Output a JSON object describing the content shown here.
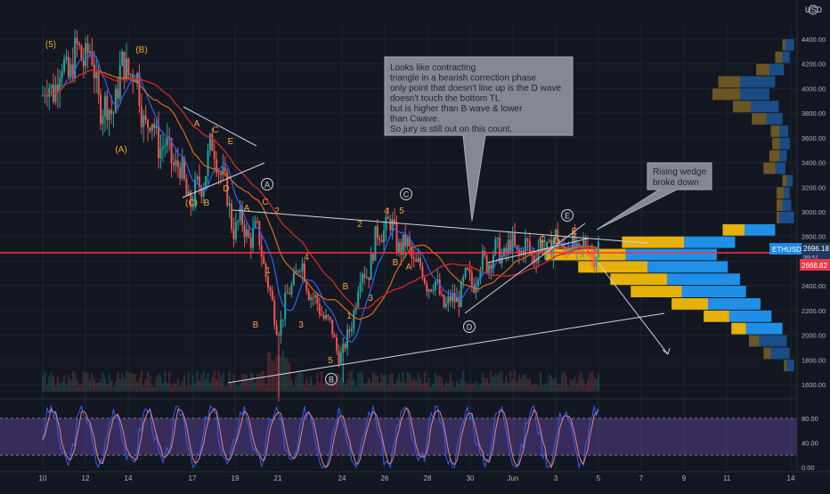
{
  "header": {
    "currency": "USD"
  },
  "price_badges": {
    "symbol": "ETHUSD",
    "last": "2696.18",
    "countdown": "39:51",
    "level": "2668.82"
  },
  "colors": {
    "bg": "#131722",
    "grid": "#1f2430",
    "text": "#b2b5be",
    "up": "#26a69a",
    "down": "#ef5350",
    "ma_blue": "#2962ff",
    "ma_orange": "#e0691a",
    "ma_red": "#c62828",
    "wave": "#f7a531",
    "line": "#d1d4dc",
    "hline": "#f23645",
    "vp_blue_in": "#2196f3",
    "vp_blue_out": "#1b4f8c",
    "vp_yel_in": "#f0b90b",
    "vp_yel_out": "#6f5a26",
    "stoch_k": "#2962ff",
    "stoch_d": "#f08080",
    "stoch_band": "#7e57c2"
  },
  "chart_data": [
    {
      "type": "line",
      "title": "ETHUSD",
      "ylim": [
        1500,
        4500
      ],
      "y_ticks": [
        "4400.00",
        "4200.00",
        "4000.00",
        "3800.00",
        "3600.00",
        "3400.00",
        "3200.00",
        "3000.00",
        "2800.00",
        "2600.00",
        "2400.00",
        "2200.00",
        "2000.00",
        "1800.00",
        "1600.00"
      ],
      "y_tick_values": [
        4400,
        4200,
        4000,
        3800,
        3600,
        3400,
        3200,
        3000,
        2800,
        2600,
        2400,
        2200,
        2000,
        1800,
        1600
      ],
      "x_ticks": [
        "10",
        "12",
        "14",
        "17",
        "19",
        "21",
        "24",
        "26",
        "28",
        "30",
        "Jun",
        "3",
        "5",
        "7",
        "9",
        "11",
        "14"
      ],
      "x_tick_index": [
        0,
        2,
        4,
        7,
        9,
        11,
        14,
        16,
        18,
        20,
        22,
        24,
        26,
        28,
        30,
        32,
        35
      ],
      "series": [
        {
          "x": [
            0,
            1,
            2,
            3,
            4,
            5,
            6,
            7,
            8,
            9,
            10,
            11,
            12,
            13,
            14,
            15,
            16,
            17,
            18,
            19,
            20,
            21,
            22,
            23,
            24,
            25,
            26
          ],
          "values": [
            3950,
            4150,
            4300,
            3800,
            4200,
            3700,
            3450,
            3100,
            3500,
            2900,
            2800,
            2100,
            2550,
            2200,
            1850,
            2500,
            2900,
            2700,
            2450,
            2250,
            2450,
            2650,
            2700,
            2680,
            2750,
            2700,
            2696
          ]
        }
      ],
      "annotations": {
        "waves": [
          "(5)",
          "(B)",
          "(A)",
          "A",
          "C",
          "E",
          "(C)",
          "B",
          "D",
          "A",
          "C",
          "2",
          "1",
          "B",
          "4",
          "3",
          "5",
          "B",
          "1",
          "2",
          "3",
          "4",
          "5",
          "B",
          "A",
          "C",
          "D",
          "E"
        ],
        "circled": [
          "A",
          "B",
          "C",
          "D",
          "E"
        ],
        "callout_1": [
          "Looks like contracting",
          "triangle in a bearish correction phase",
          "only point that doesn't line up is the D wave",
          "doesn't touch the bottom TL",
          "but is higher than B wave & lower",
          "than Cwave.",
          "So jury is still out on this count."
        ],
        "callout_2": [
          "Rising wedge",
          "broke down"
        ]
      }
    },
    {
      "type": "line",
      "title": "",
      "ylim": [
        -5,
        100
      ],
      "y_ticks": [
        "80.00",
        "40.00",
        "0.00"
      ],
      "y_tick_values": [
        80,
        40,
        0
      ],
      "bands": [
        20,
        80
      ]
    },
    {
      "type": "bar",
      "title": "",
      "y_bins": [
        4350,
        4250,
        4150,
        4050,
        3950,
        3850,
        3750,
        3650,
        3550,
        3450,
        3350,
        3250,
        3150,
        3050,
        2950,
        2850,
        2750,
        2650,
        2550,
        2450,
        2350,
        2250,
        2150,
        2050,
        1950,
        1850,
        1750
      ],
      "up_values": [
        4,
        10,
        18,
        30,
        38,
        25,
        20,
        12,
        10,
        14,
        16,
        6,
        10,
        8,
        4,
        30,
        85,
        110,
        95,
        78,
        70,
        50,
        35,
        20,
        14,
        10,
        4
      ],
      "down_values": [
        12,
        10,
        20,
        48,
        40,
        38,
        22,
        12,
        14,
        10,
        14,
        8,
        8,
        12,
        20,
        42,
        70,
        125,
        110,
        100,
        88,
        72,
        58,
        50,
        38,
        26,
        10
      ]
    }
  ]
}
